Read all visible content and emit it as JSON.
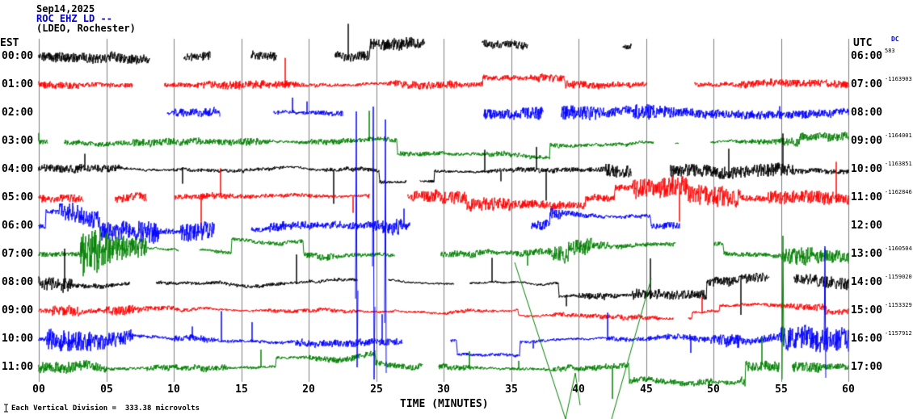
{
  "header": {
    "date": "Sep14,2025",
    "station": "ROC EHZ LD --",
    "network": "(LDEO, Rochester)"
  },
  "axes": {
    "left_label": "EST",
    "right_label": "UTC",
    "dc_label": "DC",
    "x_title": "TIME (MINUTES)"
  },
  "footer": {
    "scale_text": "Each Vertical Division =  333.38 microvolts"
  },
  "colors": {
    "trace_cycle": [
      "#000000",
      "#ff0000",
      "#0000ff",
      "#008000"
    ],
    "grid": "#7f7f7f",
    "station_text": "#0000cc",
    "background": "#ffffff"
  },
  "chart_data": {
    "type": "line",
    "subtype": "helicorder seismogram, 12 hourly rows x 60 minutes each",
    "title": "ROC EHZ LD -- (LDEO, Rochester)",
    "date": "Sep14,2025",
    "xlabel": "TIME (MINUTES)",
    "x_range_minutes": [
      0,
      60
    ],
    "x_tick_interval_minutes": 5,
    "x_ticks": [
      "00",
      "05",
      "10",
      "15",
      "20",
      "25",
      "30",
      "35",
      "40",
      "45",
      "50",
      "55",
      "60"
    ],
    "vertical_division_microvolts": 333.38,
    "grid": {
      "vertical_lines": true,
      "horizontal_lines": false
    },
    "waveform_note": "continuous seismic noise traces with telemetry gaps, DC step offsets and spike artifacts; individual sample values not resolvable from image",
    "rows": [
      {
        "est": "00:00",
        "utc": "06:00",
        "dc": "583",
        "color": "#000000"
      },
      {
        "est": "01:00",
        "utc": "07:00",
        "dc": "-1163903",
        "color": "#ff0000"
      },
      {
        "est": "02:00",
        "utc": "08:00",
        "dc": "",
        "color": "#0000ff"
      },
      {
        "est": "03:00",
        "utc": "09:00",
        "dc": "-1164001",
        "color": "#008000"
      },
      {
        "est": "04:00",
        "utc": "10:00",
        "dc": "-1163851",
        "color": "#000000"
      },
      {
        "est": "05:00",
        "utc": "11:00",
        "dc": "-1162846",
        "color": "#ff0000"
      },
      {
        "est": "06:00",
        "utc": "12:00",
        "dc": "",
        "color": "#0000ff"
      },
      {
        "est": "07:00",
        "utc": "13:00",
        "dc": "-1160504",
        "color": "#008000"
      },
      {
        "est": "08:00",
        "utc": "14:00",
        "dc": "-1159020",
        "color": "#000000"
      },
      {
        "est": "09:00",
        "utc": "15:00",
        "dc": "-1153329",
        "color": "#ff0000"
      },
      {
        "est": "10:00",
        "utc": "16:00",
        "dc": "-1157912",
        "color": "#0000ff"
      },
      {
        "est": "11:00",
        "utc": "17:00",
        "dc": "",
        "color": "#008000"
      }
    ]
  }
}
